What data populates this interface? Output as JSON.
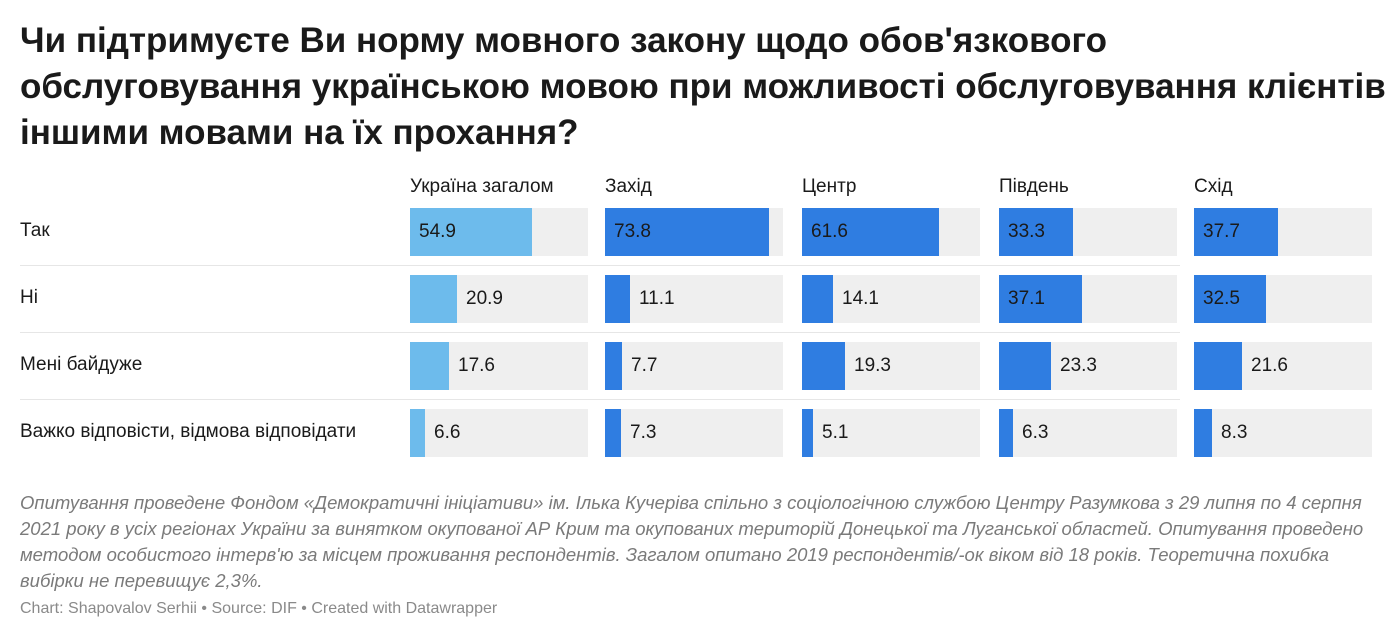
{
  "title": "Чи підтримуєте Ви норму мовного закону щодо обов'язкового обслуговування українською мовою при можливості обслуговування клієнтів іншими мовами на їх прохання?",
  "notes": "Опитування проведене Фондом «Демократичні ініціативи» ім. Ілька Кучеріва спільно з соціологічною службою Центру Разумкова з 29 липня по 4 серпня 2021 року в усіх регіонах України за винятком окупованої АР Крим та окупованих територій Донецької та Луганської областей. Опитування проведено методом особистого інтерв'ю за місцем проживання респондентів. Загалом опитано 2019 респондентів/-ок віком від 18 років. Теоретична похибка вибірки не перевищує 2,3%.",
  "footer": "Chart: Shapovalov Serhii • Source: DIF • Created with Datawrapper",
  "colors": {
    "highlight": "#6dbbec",
    "bar": "#2f7de1",
    "track": "#efefef"
  },
  "chart_data": {
    "type": "bar",
    "orientation": "horizontal",
    "layout": "small-multiples",
    "categories": [
      "Так",
      "Ні",
      "Мені байдуже",
      "Важко відповісти, відмова відповідати"
    ],
    "xlim": [
      0,
      80
    ],
    "series": [
      {
        "name": "Україна загалом",
        "values": [
          54.9,
          20.9,
          17.6,
          6.6
        ]
      },
      {
        "name": "Захід",
        "values": [
          73.8,
          11.1,
          7.7,
          7.3
        ]
      },
      {
        "name": "Центр",
        "values": [
          61.6,
          14.1,
          19.3,
          5.1
        ]
      },
      {
        "name": "Південь",
        "values": [
          33.3,
          37.1,
          23.3,
          6.3
        ]
      },
      {
        "name": "Схід",
        "values": [
          37.7,
          32.5,
          21.6,
          8.3
        ]
      }
    ]
  }
}
